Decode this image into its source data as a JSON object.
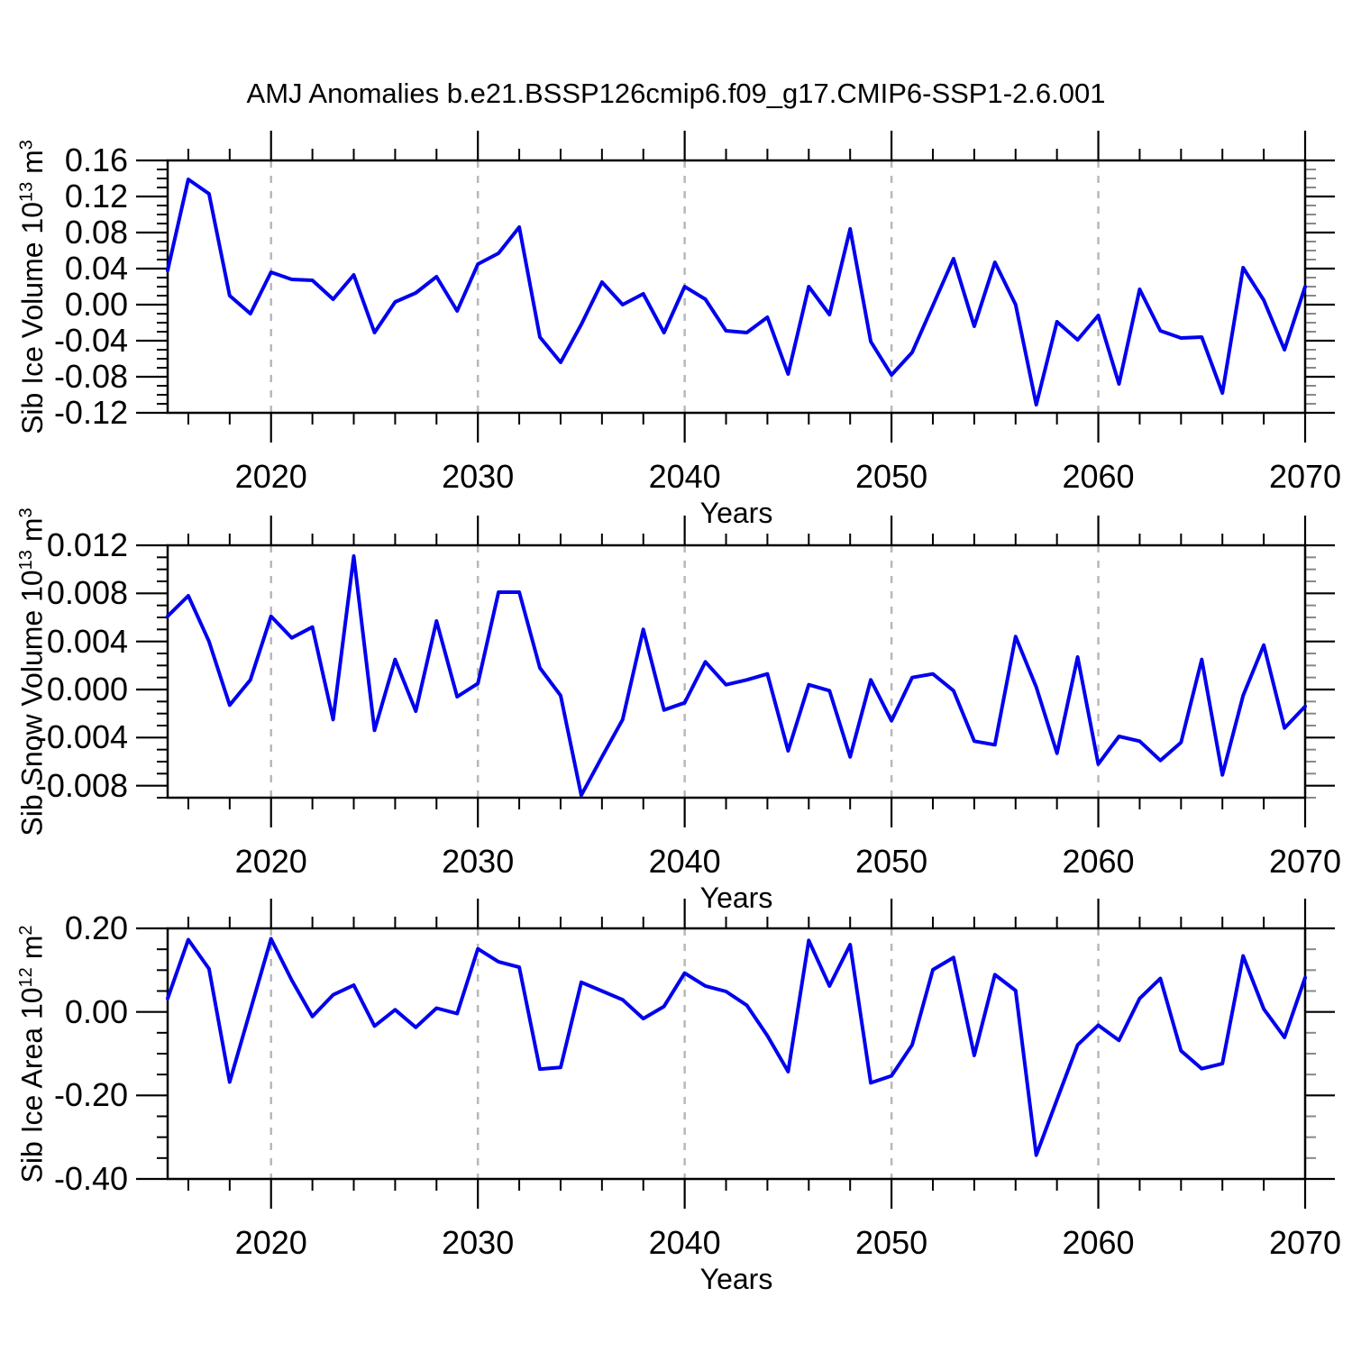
{
  "title": "AMJ Anomalies b.e21.BSSP126cmip6.f09_g17.CMIP6-SSP1-2.6.001",
  "line_color": "#0000ee",
  "grid_color": "#b8b8b8",
  "frame_color": "#000000",
  "chart_data": {
    "type": "line",
    "title": "AMJ Anomalies b.e21.BSSP126cmip6.f09_g17.CMIP6-SSP1-2.6.001",
    "x_years": [
      2015,
      2016,
      2017,
      2018,
      2019,
      2020,
      2021,
      2022,
      2023,
      2024,
      2025,
      2026,
      2027,
      2028,
      2029,
      2030,
      2031,
      2032,
      2033,
      2034,
      2035,
      2036,
      2037,
      2038,
      2039,
      2040,
      2041,
      2042,
      2043,
      2044,
      2045,
      2046,
      2047,
      2048,
      2049,
      2050,
      2051,
      2052,
      2053,
      2054,
      2055,
      2056,
      2057,
      2058,
      2059,
      2060,
      2061,
      2062,
      2063,
      2064,
      2065,
      2066,
      2067,
      2068,
      2069,
      2070
    ],
    "xlim": [
      2015,
      2070
    ],
    "xticks": [
      2020,
      2030,
      2040,
      2050,
      2060,
      2070
    ],
    "xminor_step": 2,
    "grid_years": [
      2020,
      2030,
      2040,
      2050,
      2060
    ],
    "grid": true,
    "legend": "none",
    "panels": [
      {
        "ylabel_base": "Sib Ice Volume 10",
        "ylabel_exp": "13",
        "ylabel_unit": " m",
        "ylabel_unit_exp": "3",
        "xlabel": "Years",
        "ylim": [
          -0.12,
          0.16
        ],
        "ytick_step": 0.04,
        "yminor_step": 0.01,
        "ydecimals": 2,
        "values": [
          0.038,
          0.139,
          0.123,
          0.01,
          -0.01,
          0.036,
          0.028,
          0.027,
          0.006,
          0.033,
          -0.031,
          0.003,
          0.013,
          0.031,
          -0.007,
          0.045,
          0.057,
          0.086,
          -0.036,
          -0.064,
          -0.022,
          0.025,
          0.0,
          0.012,
          -0.031,
          0.02,
          0.006,
          -0.029,
          -0.031,
          -0.014,
          -0.077,
          0.02,
          -0.011,
          0.084,
          -0.041,
          -0.078,
          -0.053,
          -0.001,
          0.051,
          -0.024,
          0.047,
          0.0,
          -0.111,
          -0.019,
          -0.039,
          -0.012,
          -0.088,
          0.017,
          -0.029,
          -0.037,
          -0.036,
          -0.098,
          0.041,
          0.005,
          -0.05,
          0.02
        ]
      },
      {
        "ylabel_base": "Sib Snow Volume 10",
        "ylabel_exp": "13",
        "ylabel_unit": " m",
        "ylabel_unit_exp": "3",
        "xlabel": "Years",
        "ylim": [
          -0.009,
          0.012
        ],
        "ytick_step": 0.004,
        "yminor_step": 0.001,
        "ydecimals": 3,
        "values": [
          0.0061,
          0.0078,
          0.004,
          -0.0013,
          0.0008,
          0.0061,
          0.0043,
          0.0052,
          -0.0025,
          0.0111,
          -0.0034,
          0.0025,
          -0.0018,
          0.0057,
          -0.0006,
          0.0005,
          0.0081,
          0.0081,
          0.0018,
          -0.0005,
          -0.0088,
          -0.0056,
          -0.0025,
          0.005,
          -0.0017,
          -0.0011,
          0.0023,
          0.0004,
          0.0008,
          0.0013,
          -0.0051,
          0.0004,
          -0.0001,
          -0.0056,
          0.0008,
          -0.0026,
          0.001,
          0.0013,
          -0.0001,
          -0.0043,
          -0.0046,
          0.0044,
          0.0002,
          -0.0053,
          0.0027,
          -0.0062,
          -0.0039,
          -0.0043,
          -0.0059,
          -0.0044,
          0.0025,
          -0.0071,
          -0.0005,
          0.0037,
          -0.0032,
          -0.0014
        ]
      },
      {
        "ylabel_base": "Sib Ice Area 10",
        "ylabel_exp": "12",
        "ylabel_unit": " m",
        "ylabel_unit_exp": "2",
        "xlabel": "Years",
        "ylim": [
          -0.4,
          0.2
        ],
        "ytick_step": 0.2,
        "yminor_step": 0.05,
        "ydecimals": 2,
        "values": [
          0.032,
          0.173,
          0.103,
          -0.168,
          0.004,
          0.175,
          0.076,
          -0.011,
          0.041,
          0.064,
          -0.034,
          0.005,
          -0.037,
          0.009,
          -0.004,
          0.151,
          0.12,
          0.107,
          -0.137,
          -0.133,
          0.071,
          0.05,
          0.029,
          -0.016,
          0.013,
          0.093,
          0.062,
          0.049,
          0.016,
          -0.057,
          -0.143,
          0.171,
          0.062,
          0.161,
          -0.17,
          -0.153,
          -0.079,
          0.101,
          0.13,
          -0.104,
          0.089,
          0.051,
          -0.343,
          -0.21,
          -0.079,
          -0.032,
          -0.068,
          0.032,
          0.08,
          -0.093,
          -0.136,
          -0.124,
          0.134,
          0.007,
          -0.061,
          0.082
        ]
      }
    ]
  }
}
